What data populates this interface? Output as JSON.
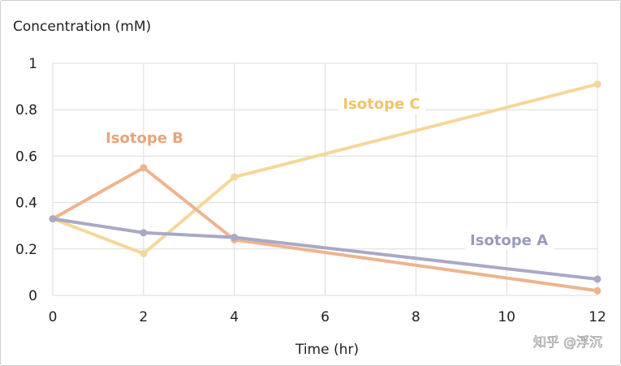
{
  "chart_data": {
    "type": "line",
    "ylabel": "Concentration (mM)",
    "xlabel": "Time (hr)",
    "xlim": [
      0,
      12
    ],
    "ylim": [
      0,
      1
    ],
    "xticks": [
      "0",
      "2",
      "4",
      "6",
      "8",
      "10",
      "12"
    ],
    "yticks": [
      "0",
      "0.2",
      "0.4",
      "0.6",
      "0.8",
      "1"
    ],
    "grid": true,
    "series": [
      {
        "name": "Isotope A",
        "color": "#a9a9c6",
        "x": [
          0,
          2,
          4,
          12
        ],
        "y": [
          0.33,
          0.27,
          0.25,
          0.07
        ]
      },
      {
        "name": "Isotope B",
        "color": "#edb48e",
        "x": [
          0,
          2,
          4,
          12
        ],
        "y": [
          0.33,
          0.55,
          0.24,
          0.02
        ]
      },
      {
        "name": "Isotope C",
        "color": "#f4d79a",
        "x": [
          0,
          2,
          4,
          12
        ],
        "y": [
          0.33,
          0.18,
          0.51,
          0.91
        ]
      }
    ],
    "label_colors": {
      "Isotope A": "#9a9ab8",
      "Isotope B": "#e6a57c",
      "Isotope C": "#f0c46a"
    }
  },
  "watermark": "知乎 @浮沉"
}
